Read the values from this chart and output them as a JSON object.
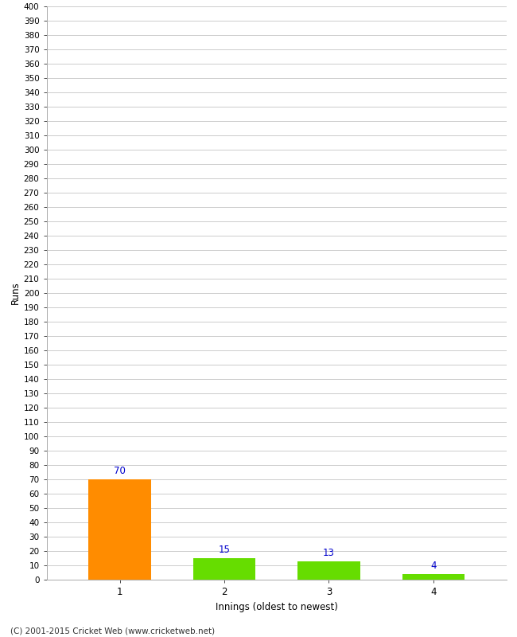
{
  "categories": [
    "1",
    "2",
    "3",
    "4"
  ],
  "values": [
    70,
    15,
    13,
    4
  ],
  "bar_colors": [
    "#ff8c00",
    "#66dd00",
    "#66dd00",
    "#66dd00"
  ],
  "value_label_color": "#0000cc",
  "xlabel": "Innings (oldest to newest)",
  "ylabel": "Runs",
  "ylim": [
    0,
    400
  ],
  "ytick_step": 10,
  "background_color": "#ffffff",
  "grid_color": "#cccccc",
  "footer": "(C) 2001-2015 Cricket Web (www.cricketweb.net)",
  "bar_width": 0.6,
  "xlim_left": 0.3,
  "xlim_right": 4.7
}
